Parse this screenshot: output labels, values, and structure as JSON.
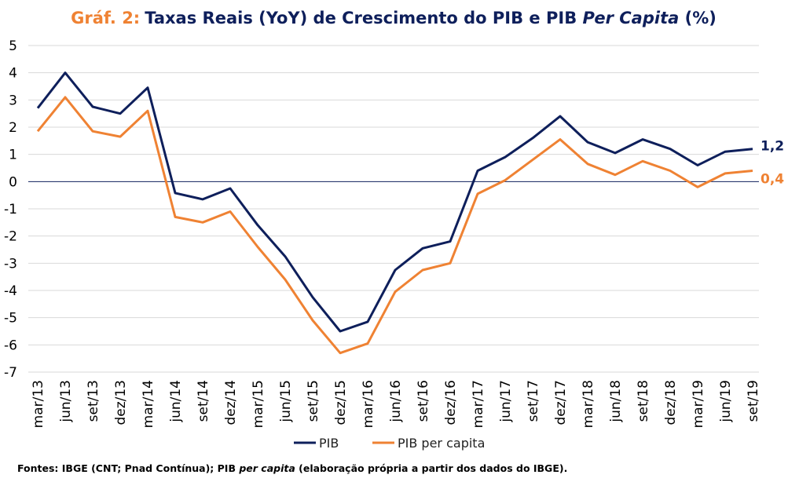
{
  "chart_data": {
    "type": "line",
    "title_prefix": "Gráf. 2:",
    "title_main": "Taxas Reais (YoY) de Crescimento do PIB e PIB ",
    "title_italic": "Per Capita",
    "title_suffix": " (%)",
    "xlabel": "",
    "ylabel": "",
    "ylim": [
      -7,
      5
    ],
    "yticks": [
      5,
      4,
      3,
      2,
      1,
      0,
      -1,
      -2,
      -3,
      -4,
      -5,
      -6,
      -7
    ],
    "grid": true,
    "legend_position": "bottom-center",
    "categories": [
      "mar/13",
      "jun/13",
      "set/13",
      "dez/13",
      "mar/14",
      "jun/14",
      "set/14",
      "dez/14",
      "mar/15",
      "jun/15",
      "set/15",
      "dez/15",
      "mar/16",
      "jun/16",
      "set/16",
      "dez/16",
      "mar/17",
      "jun/17",
      "set/17",
      "dez/17",
      "mar/18",
      "jun/18",
      "set/18",
      "dez/18",
      "mar/19",
      "jun/19",
      "set/19"
    ],
    "series": [
      {
        "name": "PIB",
        "color": "#0e1f5b",
        "end_label": "1,2",
        "values": [
          2.7,
          4.0,
          2.75,
          2.5,
          3.45,
          -0.42,
          -0.65,
          -0.25,
          -1.6,
          -2.75,
          -4.25,
          -5.5,
          -5.15,
          -3.25,
          -2.45,
          -2.2,
          0.4,
          0.9,
          1.6,
          2.4,
          1.45,
          1.05,
          1.55,
          1.2,
          0.6,
          1.1,
          1.2
        ]
      },
      {
        "name": "PIB per capita",
        "color": "#ef8233",
        "end_label": "0,4",
        "values": [
          1.85,
          3.1,
          1.85,
          1.65,
          2.6,
          -1.3,
          -1.5,
          -1.1,
          -2.4,
          -3.6,
          -5.1,
          -6.3,
          -5.95,
          -4.05,
          -3.25,
          -3.0,
          -0.45,
          0.05,
          0.8,
          1.55,
          0.65,
          0.25,
          0.75,
          0.4,
          -0.2,
          0.3,
          0.4
        ]
      }
    ]
  },
  "footer": {
    "prefix": "Fontes: IBGE (CNT; Pnad Contínua); PIB ",
    "italic": "per capita",
    "suffix": " (elaboração própria a partir dos dados do IBGE)."
  }
}
